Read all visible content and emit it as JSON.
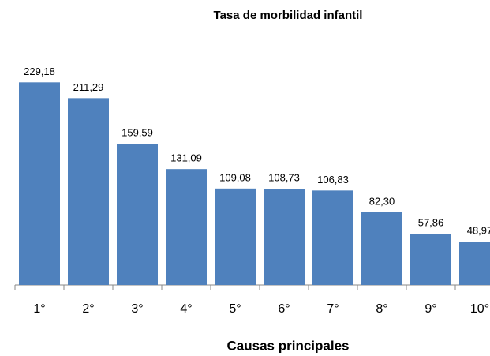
{
  "chart_data": {
    "type": "bar",
    "title": "Tasa de morbilidad infantil",
    "x_label": "Causas principales",
    "categories": [
      "1°",
      "2°",
      "3°",
      "4°",
      "5°",
      "6°",
      "7°",
      "8°",
      "9°",
      "10°"
    ],
    "values": [
      229.18,
      211.29,
      159.59,
      131.09,
      109.08,
      108.73,
      106.83,
      82.3,
      57.86,
      48.97
    ],
    "value_labels": [
      "229,18",
      "211,29",
      "159,59",
      "131,09",
      "109,08",
      "108,73",
      "106,83",
      "82,30",
      "57,86",
      "48,97"
    ],
    "color": "#4f81bd",
    "ylim": [
      0,
      250
    ]
  }
}
